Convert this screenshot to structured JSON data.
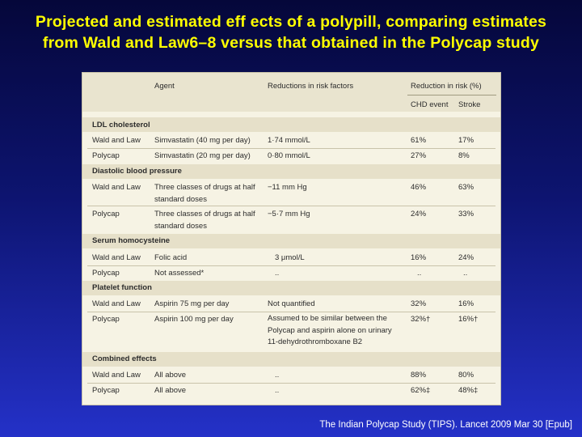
{
  "title": {
    "line1": "Projected and estimated eff ects of a polypill, comparing estimates",
    "line2": "from Wald and Law6–8 versus that obtained in the Polycap study"
  },
  "table": {
    "headers": {
      "agent": "Agent",
      "reductions": "Reductions in risk factors",
      "reduction_in_risk": "Reduction in risk (%)",
      "chd": "CHD event",
      "stroke": "Stroke"
    },
    "sections": [
      {
        "name": "LDL cholesterol",
        "rows": [
          {
            "source": "Wald and Law",
            "agent": "Simvastatin (40 mg per day)",
            "reduction": "1·74 mmol/L",
            "chd": "61%",
            "stroke": "17%"
          },
          {
            "source": "Polycap",
            "agent": "Simvastatin (20 mg per day)",
            "reduction": "0·80 mmol/L",
            "chd": "27%",
            "stroke": "8%"
          }
        ]
      },
      {
        "name": "Diastolic blood pressure",
        "rows": [
          {
            "source": "Wald and Law",
            "agent": "Three classes of drugs at half standard doses",
            "reduction": "−11 mm Hg",
            "chd": "46%",
            "stroke": "63%"
          },
          {
            "source": "Polycap",
            "agent": "Three classes of drugs at half standard doses",
            "reduction": "−5·7 mm Hg",
            "chd": "24%",
            "stroke": "33%"
          }
        ]
      },
      {
        "name": "Serum homocysteine",
        "rows": [
          {
            "source": "Wald and Law",
            "agent": "Folic acid",
            "reduction": "3 μmol/L",
            "chd": "16%",
            "stroke": "24%"
          },
          {
            "source": "Polycap",
            "agent": "Not assessed*",
            "reduction": "..",
            "chd": "..",
            "stroke": ".."
          }
        ]
      },
      {
        "name": "Platelet function",
        "rows": [
          {
            "source": "Wald and Law",
            "agent": "Aspirin 75 mg per day",
            "reduction": "Not quantified",
            "chd": "32%",
            "stroke": "16%"
          },
          {
            "source": "Polycap",
            "agent": "Aspirin 100 mg per day",
            "reduction": "Assumed to be similar between the Polycap and aspirin alone on urinary 11-dehydrothromboxane B2",
            "chd": "32%†",
            "stroke": "16%†"
          }
        ]
      },
      {
        "name": "Combined effects",
        "rows": [
          {
            "source": "Wald and Law",
            "agent": "All above",
            "reduction": "..",
            "chd": "88%",
            "stroke": "80%"
          },
          {
            "source": "Polycap",
            "agent": "All above",
            "reduction": "..",
            "chd": "62%‡",
            "stroke": "48%‡"
          }
        ]
      }
    ]
  },
  "footer": "The Indian Polycap Study (TIPS). Lancet 2009 Mar 30 [Epub]"
}
